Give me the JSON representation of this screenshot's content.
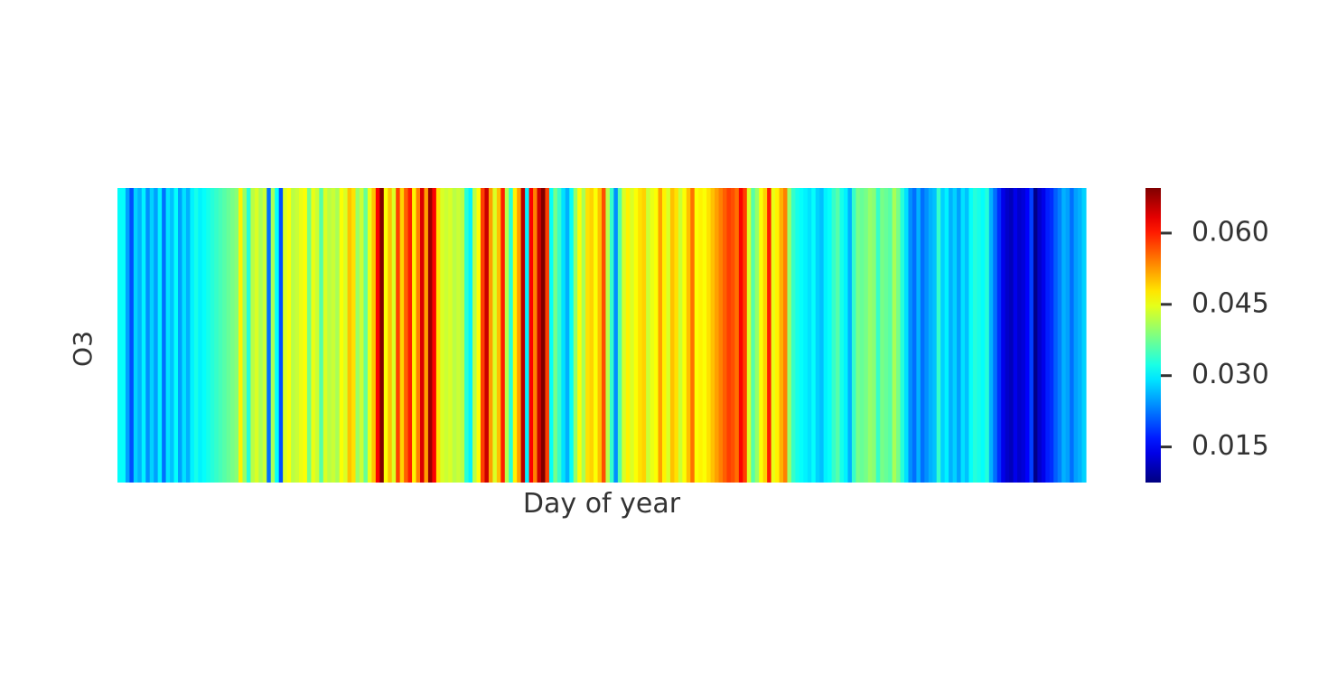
{
  "chart_data": {
    "type": "heatmap",
    "title": "",
    "xlabel": "Day of year",
    "ylabel": "O3",
    "colormap": "jet",
    "colorbar": {
      "vmin": 0.0075,
      "vmax": 0.0695,
      "ticks": [
        0.015,
        0.03,
        0.045,
        0.06
      ],
      "tick_labels": [
        "0.015",
        "0.030",
        "0.045",
        "0.060"
      ]
    },
    "rows": [
      "O3"
    ],
    "x_tick_labels": "hidden",
    "grid": false,
    "values": [
      0.031,
      0.031,
      0.025,
      0.02,
      0.028,
      0.026,
      0.03,
      0.024,
      0.028,
      0.025,
      0.03,
      0.022,
      0.029,
      0.027,
      0.031,
      0.025,
      0.029,
      0.026,
      0.03,
      0.032,
      0.03,
      0.031,
      0.032,
      0.033,
      0.034,
      0.035,
      0.036,
      0.037,
      0.038,
      0.039,
      0.047,
      0.04,
      0.033,
      0.042,
      0.044,
      0.041,
      0.043,
      0.022,
      0.041,
      0.031,
      0.02,
      0.044,
      0.046,
      0.042,
      0.043,
      0.045,
      0.046,
      0.038,
      0.045,
      0.043,
      0.036,
      0.044,
      0.042,
      0.043,
      0.041,
      0.046,
      0.044,
      0.05,
      0.048,
      0.04,
      0.043,
      0.037,
      0.045,
      0.05,
      0.062,
      0.07,
      0.046,
      0.05,
      0.044,
      0.058,
      0.049,
      0.056,
      0.06,
      0.047,
      0.054,
      0.064,
      0.052,
      0.068,
      0.062,
      0.048,
      0.044,
      0.043,
      0.044,
      0.042,
      0.043,
      0.042,
      0.033,
      0.03,
      0.042,
      0.046,
      0.058,
      0.065,
      0.052,
      0.044,
      0.05,
      0.06,
      0.042,
      0.033,
      0.047,
      0.052,
      0.066,
      0.03,
      0.062,
      0.054,
      0.065,
      0.07,
      0.058,
      0.031,
      0.038,
      0.034,
      0.029,
      0.026,
      0.031,
      0.04,
      0.046,
      0.041,
      0.048,
      0.049,
      0.046,
      0.05,
      0.057,
      0.042,
      0.034,
      0.024,
      0.036,
      0.044,
      0.047,
      0.044,
      0.046,
      0.048,
      0.049,
      0.043,
      0.045,
      0.046,
      0.052,
      0.047,
      0.044,
      0.05,
      0.048,
      0.043,
      0.046,
      0.05,
      0.055,
      0.046,
      0.047,
      0.046,
      0.048,
      0.05,
      0.052,
      0.054,
      0.056,
      0.058,
      0.057,
      0.055,
      0.062,
      0.058,
      0.044,
      0.036,
      0.04,
      0.046,
      0.049,
      0.06,
      0.045,
      0.047,
      0.051,
      0.054,
      0.04,
      0.034,
      0.032,
      0.031,
      0.03,
      0.029,
      0.031,
      0.028,
      0.027,
      0.03,
      0.031,
      0.034,
      0.036,
      0.032,
      0.03,
      0.026,
      0.034,
      0.038,
      0.037,
      0.038,
      0.04,
      0.039,
      0.034,
      0.038,
      0.037,
      0.036,
      0.041,
      0.038,
      0.033,
      0.029,
      0.024,
      0.022,
      0.026,
      0.022,
      0.024,
      0.026,
      0.027,
      0.034,
      0.028,
      0.03,
      0.026,
      0.028,
      0.025,
      0.029,
      0.027,
      0.031,
      0.033,
      0.032,
      0.031,
      0.033,
      0.026,
      0.022,
      0.018,
      0.014,
      0.012,
      0.011,
      0.014,
      0.012,
      0.013,
      0.015,
      0.019,
      0.008,
      0.012,
      0.014,
      0.017,
      0.018,
      0.021,
      0.023,
      0.026,
      0.025,
      0.022,
      0.025,
      0.026,
      0.028
    ]
  }
}
